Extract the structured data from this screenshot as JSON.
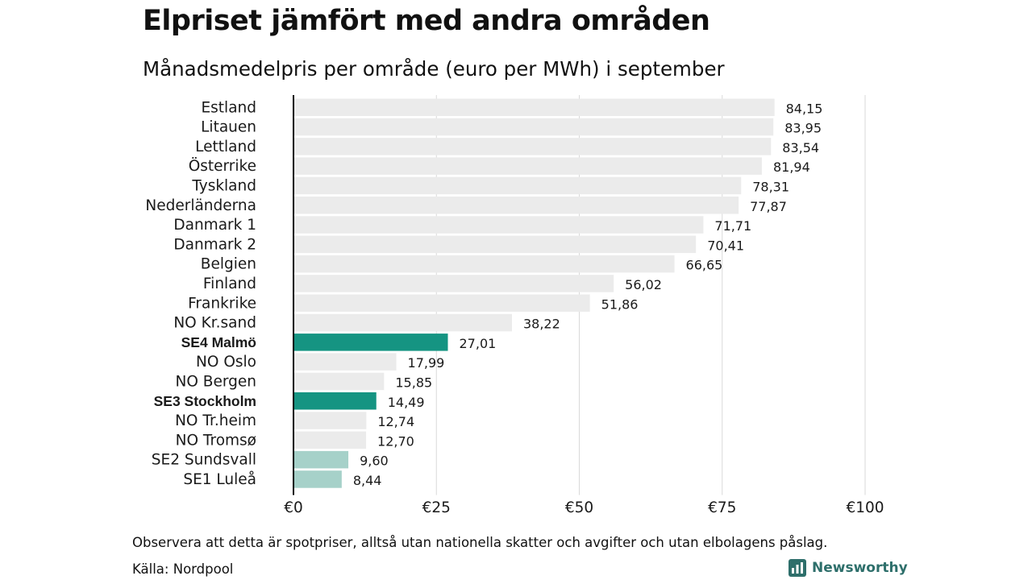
{
  "title": "Elpriset jämfört med andra områden",
  "subtitle": "Månadsmedelpris per område (euro per MWh) i september",
  "note": "Observera att detta är spotpriser, alltså utan nationella skatter och avgifter och utan elbolagens påslag.",
  "source": "Källa: Nordpool",
  "brand": {
    "name": "Newsworthy",
    "icon": "newsworthy-logo-icon"
  },
  "colors": {
    "default_bar": "#ebebeb",
    "highlight_bar": "#159482",
    "light_highlight_bar": "#a6d1c9",
    "gridline": "#d9d9d9",
    "axis": "#000000"
  },
  "chart_data": {
    "type": "bar",
    "orientation": "horizontal",
    "xlim": [
      0,
      100
    ],
    "x_ticks": [
      "€0",
      "€25",
      "€50",
      "€75",
      "€100"
    ],
    "x_tick_values": [
      0,
      25,
      50,
      75,
      100
    ],
    "grid": true,
    "categories": [
      "Estland",
      "Litauen",
      "Lettland",
      "Österrike",
      "Tyskland",
      "Nederländerna",
      "Danmark 1",
      "Danmark 2",
      "Belgien",
      "Finland",
      "Frankrike",
      "NO Kr.sand",
      "SE4 Malmö",
      "NO Oslo",
      "NO Bergen",
      "SE3 Stockholm",
      "NO Tr.heim",
      "NO Tromsø",
      "SE2 Sundsvall",
      "SE1 Luleå"
    ],
    "values": [
      84.15,
      83.95,
      83.54,
      81.94,
      78.31,
      77.87,
      71.71,
      70.41,
      66.65,
      56.02,
      51.86,
      38.22,
      27.01,
      17.99,
      15.85,
      14.49,
      12.74,
      12.7,
      9.6,
      8.44
    ],
    "value_labels": [
      "84,15",
      "83,95",
      "83,54",
      "81,94",
      "78,31",
      "77,87",
      "71,71",
      "70,41",
      "66,65",
      "56,02",
      "51,86",
      "38,22",
      "27,01",
      "17,99",
      "15,85",
      "14,49",
      "12,74",
      "12,70",
      "9,60",
      "8,44"
    ],
    "highlight": [
      "default",
      "default",
      "default",
      "default",
      "default",
      "default",
      "default",
      "default",
      "default",
      "default",
      "default",
      "default",
      "strong",
      "default",
      "default",
      "strong",
      "default",
      "default",
      "light",
      "light"
    ]
  }
}
